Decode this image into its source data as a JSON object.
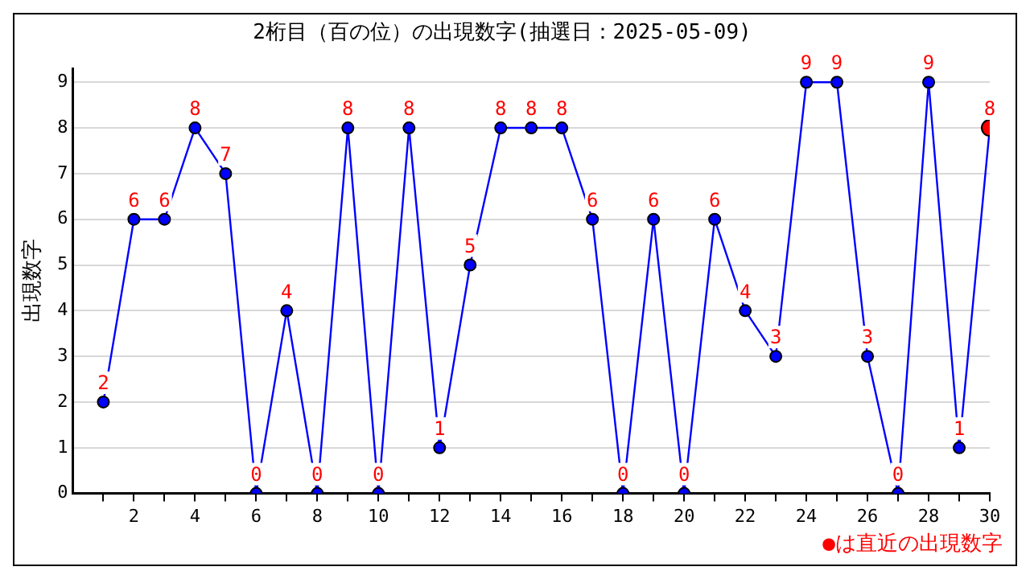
{
  "chart_data": {
    "type": "line",
    "title": "2桁目（百の位）の出現数字(抽選日：2025-05-09)",
    "ylabel": "出現数字",
    "x": [
      1,
      2,
      3,
      4,
      5,
      6,
      7,
      8,
      9,
      10,
      11,
      12,
      13,
      14,
      15,
      16,
      17,
      18,
      19,
      20,
      21,
      22,
      23,
      24,
      25,
      26,
      27,
      28,
      29,
      30
    ],
    "series": [
      {
        "color": "#0000ff",
        "colors": [
          "#0000ff",
          "#0000ff",
          "#0000ff",
          "#0000ff",
          "#0000ff",
          "#0000ff",
          "#0000ff",
          "#0000ff",
          "#0000ff",
          "#0000ff",
          "#0000ff",
          "#0000ff",
          "#0000ff",
          "#0000ff",
          "#0000ff",
          "#0000ff",
          "#0000ff",
          "#0000ff",
          "#0000ff",
          "#0000ff",
          "#0000ff",
          "#0000ff",
          "#0000ff",
          "#0000ff",
          "#0000ff",
          "#0000ff",
          "#0000ff",
          "#0000ff",
          "#0000ff",
          "#ff0000"
        ],
        "values": [
          2,
          6,
          6,
          8,
          7,
          0,
          4,
          0,
          8,
          0,
          8,
          1,
          5,
          8,
          8,
          8,
          6,
          0,
          6,
          0,
          6,
          4,
          3,
          9,
          9,
          3,
          0,
          9,
          1,
          8
        ]
      }
    ],
    "xlim": [
      0,
      30
    ],
    "xticks": [
      {
        "value": 1,
        "label": null
      },
      2,
      {
        "value": 3,
        "label": null
      },
      4,
      {
        "value": 5,
        "label": null
      },
      6,
      {
        "value": 7,
        "label": null
      },
      8,
      {
        "value": 9,
        "label": null
      },
      10,
      {
        "value": 11,
        "label": null
      },
      12,
      {
        "value": 13,
        "label": null
      },
      14,
      {
        "value": 15,
        "label": null
      },
      16,
      {
        "value": 17,
        "label": null
      },
      18,
      {
        "value": 19,
        "label": null
      },
      20,
      {
        "value": 21,
        "label": null
      },
      22,
      {
        "value": 23,
        "label": null
      },
      24,
      {
        "value": 25,
        "label": null
      },
      26,
      {
        "value": 27,
        "label": null
      },
      28,
      {
        "value": 29,
        "label": null
      },
      30
    ],
    "ylim": [
      0,
      9.3
    ],
    "yticks": [
      0,
      1,
      2,
      3,
      4,
      5,
      6,
      7,
      8,
      9
    ],
    "grid": "y",
    "legend": false,
    "marker": "circle",
    "line_style": "solid",
    "data_labels": true,
    "annotations": [
      "●は直近の出現数字"
    ]
  }
}
